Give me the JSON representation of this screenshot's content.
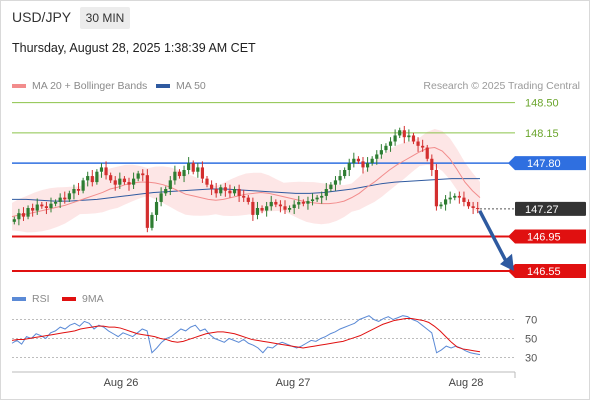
{
  "header": {
    "pair": "USD/JPY",
    "timeframe": "30 MIN"
  },
  "date_line": "Thursday, August 28, 2025 1:38:39 AM CET",
  "legend": {
    "ma20": "MA 20 + Bollinger Bands",
    "ma50": "MA 50",
    "research": "Research © 2025 Trading Central"
  },
  "rsi_legend": {
    "rsi": "RSI",
    "ma9": "9MA"
  },
  "colors": {
    "green_level": "#8bc34a",
    "blue_level": "#2f6fe0",
    "red_level": "#e01010",
    "price_badge": "#333333",
    "ma20": "#f28c8c",
    "ma50": "#2f5aa0",
    "bollinger_fill": "#fde3e3",
    "rsi": "#5b8ad6",
    "rsi_ma": "#e01010"
  },
  "chart_data": {
    "type": "candlestick",
    "price_range": [
      146.4,
      148.6
    ],
    "x_tick_labels": [
      "Aug 26",
      "Aug 27",
      "Aug 28"
    ],
    "levels": [
      {
        "value": "148.50",
        "kind": "resistance",
        "color": "green"
      },
      {
        "value": "148.15",
        "kind": "resistance",
        "color": "green"
      },
      {
        "value": "147.80",
        "kind": "pivot",
        "color": "blue"
      },
      {
        "value": "147.27",
        "kind": "last_price",
        "color": "dark"
      },
      {
        "value": "146.95",
        "kind": "support",
        "color": "red"
      },
      {
        "value": "146.55",
        "kind": "support",
        "color": "red"
      }
    ],
    "closes": [
      147.15,
      147.22,
      147.18,
      147.28,
      147.25,
      147.32,
      147.3,
      147.28,
      147.33,
      147.35,
      147.4,
      147.38,
      147.45,
      147.5,
      147.48,
      147.6,
      147.65,
      147.58,
      147.7,
      147.75,
      147.66,
      147.6,
      147.55,
      147.62,
      147.58,
      147.55,
      147.62,
      147.68,
      147.66,
      147.05,
      147.2,
      147.35,
      147.45,
      147.5,
      147.6,
      147.7,
      147.65,
      147.72,
      147.8,
      147.7,
      147.75,
      147.62,
      147.55,
      147.5,
      147.45,
      147.52,
      147.48,
      147.45,
      147.5,
      147.42,
      147.4,
      147.35,
      147.2,
      147.28,
      147.25,
      147.3,
      147.35,
      147.32,
      147.3,
      147.26,
      147.28,
      147.32,
      147.35,
      147.33,
      147.36,
      147.38,
      147.4,
      147.42,
      147.5,
      147.55,
      147.6,
      147.65,
      147.72,
      147.8,
      147.85,
      147.82,
      147.75,
      147.8,
      147.85,
      147.9,
      147.95,
      148.0,
      148.05,
      148.12,
      148.18,
      148.1,
      148.12,
      148.05,
      148.0,
      147.98,
      147.85,
      147.72,
      147.3,
      147.32,
      147.38,
      147.4,
      147.42,
      147.4,
      147.35,
      147.3,
      147.28,
      147.27
    ],
    "ma20": [
      147.18,
      147.2,
      147.21,
      147.23,
      147.25,
      147.27,
      147.29,
      147.31,
      147.34,
      147.37,
      147.4,
      147.43,
      147.46,
      147.5,
      147.52,
      147.55,
      147.57,
      147.58,
      147.58,
      147.57,
      147.55,
      147.52,
      147.48,
      147.44,
      147.42,
      147.4,
      147.38,
      147.37,
      147.38,
      147.4,
      147.42,
      147.44,
      147.45,
      147.46,
      147.45,
      147.43,
      147.41,
      147.39,
      147.37,
      147.35,
      147.34,
      147.33,
      147.33,
      147.34,
      147.36,
      147.4,
      147.45,
      147.52,
      147.58,
      147.65,
      147.72,
      147.78,
      147.83,
      147.88,
      147.93,
      147.97,
      147.98,
      147.94,
      147.85,
      147.72,
      147.58,
      147.48,
      147.4
    ],
    "ma50": [
      147.38,
      147.38,
      147.37,
      147.36,
      147.36,
      147.37,
      147.38,
      147.4,
      147.42,
      147.44,
      147.46,
      147.47,
      147.48,
      147.49,
      147.5,
      147.5,
      147.49,
      147.48,
      147.47,
      147.46,
      147.45,
      147.45,
      147.46,
      147.48,
      147.5,
      147.53,
      147.56,
      147.58,
      147.59,
      147.6,
      147.61,
      147.62,
      147.62,
      147.62
    ],
    "rsi_scale": [
      "70",
      "50",
      "30"
    ],
    "rsi": [
      45,
      48,
      44,
      52,
      50,
      55,
      53,
      50,
      56,
      58,
      62,
      60,
      64,
      66,
      63,
      68,
      66,
      60,
      64,
      62,
      58,
      55,
      52,
      56,
      54,
      52,
      56,
      60,
      58,
      35,
      40,
      46,
      50,
      52,
      56,
      60,
      58,
      62,
      64,
      58,
      60,
      54,
      50,
      48,
      46,
      50,
      48,
      46,
      49,
      45,
      43,
      40,
      35,
      41,
      40,
      44,
      46,
      44,
      42,
      40,
      42,
      45,
      48,
      47,
      50,
      52,
      55,
      57,
      60,
      62,
      64,
      66,
      70,
      72,
      74,
      70,
      68,
      71,
      73,
      70,
      72,
      74,
      73,
      70,
      68,
      64,
      60,
      56,
      35,
      38,
      42,
      40,
      42,
      40,
      37,
      35,
      34,
      33
    ],
    "rsi_ma": [
      48,
      49,
      49,
      50,
      51,
      52,
      53,
      54,
      55,
      56,
      57,
      58,
      60,
      61,
      62,
      63,
      63,
      62,
      62,
      61,
      59,
      57,
      55,
      54,
      53,
      52,
      50,
      49,
      47,
      46,
      47,
      49,
      51,
      53,
      55,
      56,
      57,
      57,
      56,
      55,
      53,
      51,
      49,
      48,
      47,
      46,
      45,
      44,
      43,
      42,
      41,
      40,
      41,
      42,
      43,
      44,
      45,
      46,
      47,
      49,
      51,
      53,
      56,
      59,
      62,
      65,
      67,
      69,
      70,
      71,
      71,
      70,
      69,
      67,
      63,
      58,
      52,
      46,
      41,
      39,
      38,
      37,
      36
    ]
  }
}
